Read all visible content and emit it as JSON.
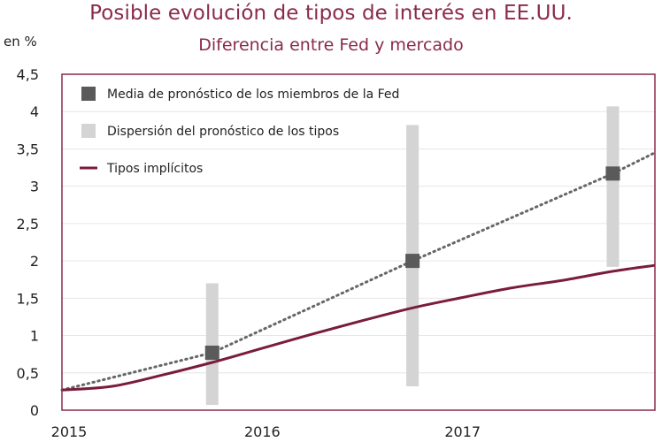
{
  "chart_data": {
    "type": "line",
    "title": "Posible evolución de tipos de interés en EE.UU.",
    "subtitle": "Diferencia entre Fed y mercado",
    "ylabel": "en %",
    "xlabel": "",
    "ylim": [
      0,
      4.5
    ],
    "xlim": [
      2015.0,
      2017.96
    ],
    "yticks": [
      "0",
      "0,5",
      "1",
      "1,5",
      "2",
      "2,5",
      "3",
      "3,5",
      "4",
      "4,5"
    ],
    "xticks": [
      {
        "label": "2015",
        "x": 2015.0
      },
      {
        "label": "2016",
        "x": 2016.0
      },
      {
        "label": "2017",
        "x": 2017.0
      }
    ],
    "grid": true,
    "legend_position": "top-left",
    "series": [
      {
        "name": "Media de pronóstico de los miembros de la Fed",
        "kind": "marker",
        "color": "#5a5a5a",
        "points": [
          {
            "x": 2015.75,
            "y": 0.77
          },
          {
            "x": 2016.75,
            "y": 2.0
          },
          {
            "x": 2017.75,
            "y": 3.17
          }
        ],
        "trend_color": "#666666",
        "trend_end": {
          "x": 2017.96,
          "y": 3.45
        }
      },
      {
        "name": "Dispersión del pronóstico de los tipos",
        "kind": "range",
        "color": "#d4d4d4",
        "ranges": [
          {
            "x": 2015.75,
            "low": 0.07,
            "high": 1.7
          },
          {
            "x": 2016.75,
            "low": 0.32,
            "high": 3.82
          },
          {
            "x": 2017.75,
            "low": 1.92,
            "high": 4.07
          }
        ]
      },
      {
        "name": "Tipos implícitos",
        "kind": "line",
        "color": "#7a1c3a",
        "points": [
          {
            "x": 2015.0,
            "y": 0.27
          },
          {
            "x": 2015.25,
            "y": 0.32
          },
          {
            "x": 2015.5,
            "y": 0.47
          },
          {
            "x": 2015.75,
            "y": 0.64
          },
          {
            "x": 2016.0,
            "y": 0.83
          },
          {
            "x": 2016.25,
            "y": 1.02
          },
          {
            "x": 2016.5,
            "y": 1.2
          },
          {
            "x": 2016.75,
            "y": 1.37
          },
          {
            "x": 2017.0,
            "y": 1.51
          },
          {
            "x": 2017.25,
            "y": 1.64
          },
          {
            "x": 2017.5,
            "y": 1.74
          },
          {
            "x": 2017.75,
            "y": 1.86
          },
          {
            "x": 2017.96,
            "y": 1.94
          }
        ]
      }
    ],
    "colors": {
      "title": "#8a2a4a",
      "frame": "#8a2a4a",
      "grid": "#e6e6e6"
    }
  }
}
